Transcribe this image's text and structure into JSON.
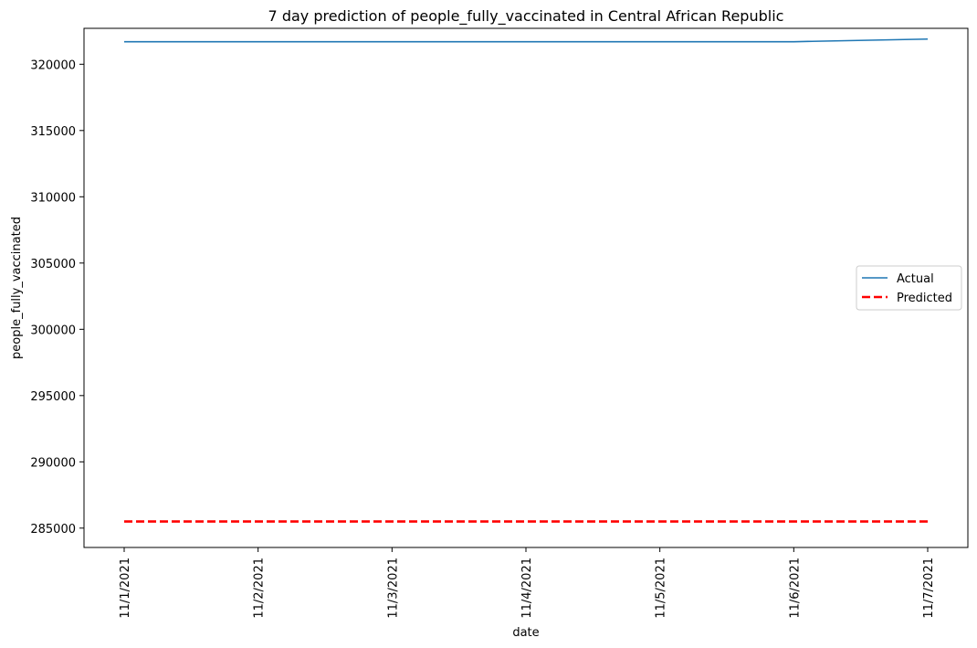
{
  "chart_data": {
    "type": "line",
    "title": "7 day prediction of people_fully_vaccinated in Central African Republic",
    "xlabel": "date",
    "ylabel": "people_fully_vaccinated",
    "categories": [
      "11/1/2021",
      "11/2/2021",
      "11/3/2021",
      "11/4/2021",
      "11/5/2021",
      "11/6/2021",
      "11/7/2021"
    ],
    "yticks": [
      285000,
      290000,
      295000,
      300000,
      305000,
      310000,
      315000,
      320000
    ],
    "ylim": [
      283540,
      322710
    ],
    "grid": false,
    "legend_position": "center-right",
    "series": [
      {
        "name": "Actual",
        "values": [
          321700,
          321700,
          321700,
          321700,
          321700,
          321700,
          321900
        ],
        "color": "#1f77b4",
        "style": "solid"
      },
      {
        "name": "Predicted",
        "values": [
          285500,
          285500,
          285500,
          285500,
          285500,
          285500,
          285500
        ],
        "color": "#ff0000",
        "style": "dashed"
      }
    ]
  }
}
